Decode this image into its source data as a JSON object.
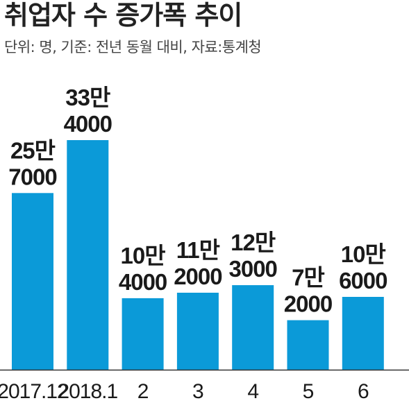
{
  "title": "취업자 수 증가폭 추이",
  "subtitle": "단위: 명, 기준: 전년 동월 대비, 자료:통계청",
  "colors": {
    "bar": "#0b9ad8",
    "axis": "#333333"
  },
  "chart_data": {
    "type": "bar",
    "title": "취업자 수 증가폭 추이",
    "subtitle": "단위: 명, 기준: 전년 동월 대비, 자료:통계청",
    "categories": [
      "2017.12",
      "2018.1",
      "2",
      "3",
      "4",
      "5",
      "6"
    ],
    "values": [
      257000,
      334000,
      104000,
      112000,
      123000,
      72000,
      106000
    ],
    "value_labels": [
      [
        "25만",
        "7000"
      ],
      [
        "33만",
        "4000"
      ],
      [
        "10만",
        "4000"
      ],
      [
        "11만",
        "2000"
      ],
      [
        "12만",
        "3000"
      ],
      [
        "7만",
        "2000"
      ],
      [
        "10만",
        "6000"
      ]
    ],
    "ylim": [
      0,
      334000
    ],
    "grid": false,
    "legend": "none"
  }
}
